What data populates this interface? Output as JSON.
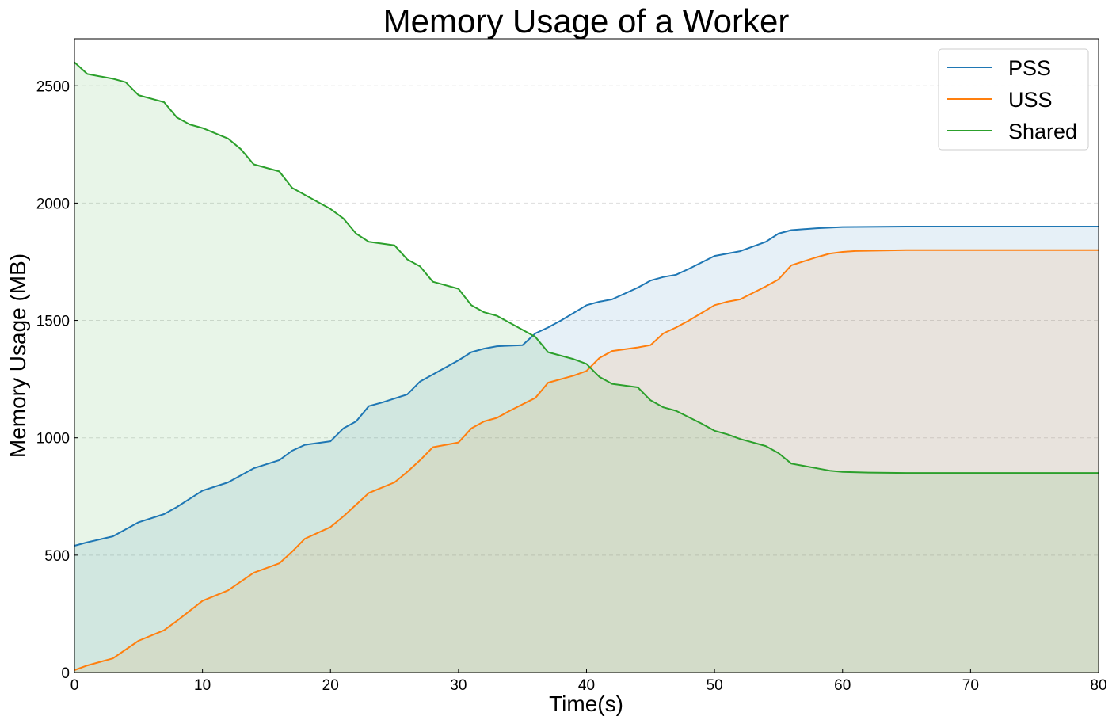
{
  "chart_data": {
    "type": "area",
    "title": "Memory Usage of a Worker",
    "xlabel": "Time(s)",
    "ylabel": "Memory Usage (MB)",
    "xlim": [
      0,
      80
    ],
    "ylim": [
      0,
      2700
    ],
    "xticks": [
      0,
      10,
      20,
      30,
      40,
      50,
      60,
      70,
      80
    ],
    "yticks": [
      0,
      500,
      1000,
      1500,
      2000,
      2500
    ],
    "grid": "horizontal dashed",
    "legend_position": "top-right",
    "series": [
      {
        "name": "PSS",
        "color": "#1f77b4",
        "fill": "#e6eff7",
        "points": [
          [
            0,
            540
          ],
          [
            1,
            555
          ],
          [
            3,
            580
          ],
          [
            5,
            640
          ],
          [
            7,
            675
          ],
          [
            8,
            705
          ],
          [
            10,
            775
          ],
          [
            12,
            810
          ],
          [
            14,
            870
          ],
          [
            16,
            905
          ],
          [
            17,
            945
          ],
          [
            18,
            970
          ],
          [
            20,
            985
          ],
          [
            21,
            1040
          ],
          [
            22,
            1070
          ],
          [
            23,
            1135
          ],
          [
            24,
            1150
          ],
          [
            26,
            1185
          ],
          [
            27,
            1240
          ],
          [
            28,
            1270
          ],
          [
            30,
            1330
          ],
          [
            31,
            1365
          ],
          [
            32,
            1380
          ],
          [
            33,
            1390
          ],
          [
            35,
            1395
          ],
          [
            36,
            1445
          ],
          [
            37,
            1470
          ],
          [
            38,
            1500
          ],
          [
            40,
            1565
          ],
          [
            41,
            1580
          ],
          [
            42,
            1590
          ],
          [
            44,
            1640
          ],
          [
            45,
            1670
          ],
          [
            46,
            1685
          ],
          [
            47,
            1695
          ],
          [
            48,
            1720
          ],
          [
            50,
            1775
          ],
          [
            51,
            1785
          ],
          [
            52,
            1795
          ],
          [
            54,
            1835
          ],
          [
            55,
            1870
          ],
          [
            56,
            1885
          ],
          [
            58,
            1893
          ],
          [
            60,
            1898
          ],
          [
            65,
            1900
          ],
          [
            80,
            1900
          ]
        ]
      },
      {
        "name": "USS",
        "color": "#ff7f0e",
        "fill": "#e8e3dc",
        "points": [
          [
            0,
            10
          ],
          [
            1,
            30
          ],
          [
            3,
            60
          ],
          [
            5,
            135
          ],
          [
            7,
            180
          ],
          [
            8,
            220
          ],
          [
            10,
            305
          ],
          [
            12,
            350
          ],
          [
            14,
            425
          ],
          [
            16,
            465
          ],
          [
            17,
            515
          ],
          [
            18,
            570
          ],
          [
            20,
            620
          ],
          [
            21,
            665
          ],
          [
            22,
            715
          ],
          [
            23,
            765
          ],
          [
            25,
            810
          ],
          [
            26,
            855
          ],
          [
            27,
            905
          ],
          [
            28,
            960
          ],
          [
            30,
            980
          ],
          [
            31,
            1040
          ],
          [
            32,
            1070
          ],
          [
            33,
            1085
          ],
          [
            34,
            1115
          ],
          [
            36,
            1170
          ],
          [
            37,
            1235
          ],
          [
            39,
            1265
          ],
          [
            40,
            1285
          ],
          [
            41,
            1340
          ],
          [
            42,
            1370
          ],
          [
            44,
            1385
          ],
          [
            45,
            1395
          ],
          [
            46,
            1445
          ],
          [
            47,
            1470
          ],
          [
            48,
            1500
          ],
          [
            50,
            1565
          ],
          [
            51,
            1580
          ],
          [
            52,
            1590
          ],
          [
            54,
            1645
          ],
          [
            55,
            1675
          ],
          [
            56,
            1735
          ],
          [
            58,
            1770
          ],
          [
            59,
            1785
          ],
          [
            60,
            1792
          ],
          [
            61,
            1796
          ],
          [
            65,
            1800
          ],
          [
            80,
            1800
          ]
        ]
      },
      {
        "name": "Shared",
        "color": "#2ca02c",
        "fill": "#d8ead4",
        "points": [
          [
            0,
            2600
          ],
          [
            1,
            2550
          ],
          [
            3,
            2530
          ],
          [
            4,
            2515
          ],
          [
            5,
            2460
          ],
          [
            7,
            2430
          ],
          [
            8,
            2365
          ],
          [
            9,
            2335
          ],
          [
            10,
            2320
          ],
          [
            12,
            2275
          ],
          [
            13,
            2230
          ],
          [
            14,
            2165
          ],
          [
            16,
            2135
          ],
          [
            17,
            2065
          ],
          [
            18,
            2035
          ],
          [
            20,
            1975
          ],
          [
            21,
            1935
          ],
          [
            22,
            1870
          ],
          [
            23,
            1835
          ],
          [
            25,
            1820
          ],
          [
            26,
            1760
          ],
          [
            27,
            1730
          ],
          [
            28,
            1665
          ],
          [
            30,
            1635
          ],
          [
            31,
            1565
          ],
          [
            32,
            1535
          ],
          [
            33,
            1520
          ],
          [
            35,
            1460
          ],
          [
            36,
            1430
          ],
          [
            37,
            1365
          ],
          [
            39,
            1335
          ],
          [
            40,
            1315
          ],
          [
            41,
            1260
          ],
          [
            42,
            1230
          ],
          [
            44,
            1215
          ],
          [
            45,
            1160
          ],
          [
            46,
            1130
          ],
          [
            47,
            1115
          ],
          [
            49,
            1060
          ],
          [
            50,
            1030
          ],
          [
            51,
            1015
          ],
          [
            52,
            995
          ],
          [
            54,
            965
          ],
          [
            55,
            935
          ],
          [
            56,
            890
          ],
          [
            58,
            870
          ],
          [
            59,
            860
          ],
          [
            60,
            855
          ],
          [
            62,
            852
          ],
          [
            65,
            850
          ],
          [
            80,
            850
          ]
        ]
      }
    ]
  }
}
